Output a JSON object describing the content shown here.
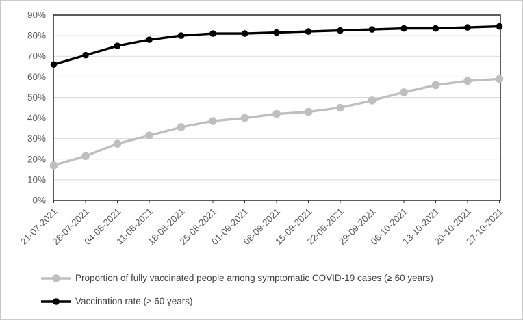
{
  "page": {
    "background": "#ffffff",
    "border_color": "#c9c9c9"
  },
  "chart_data": {
    "type": "line",
    "categories": [
      "21-07-2021",
      "28-07-2021",
      "04-08-2021",
      "11-08-2021",
      "18-08-2021",
      "25-08-2021",
      "01-09-2021",
      "08-09-2021",
      "15-09-2021",
      "22-09-2021",
      "29-09-2021",
      "06-10-2021",
      "13-10-2021",
      "20-10-2021",
      "27-10-2021"
    ],
    "series": [
      {
        "name": "Proportion of fully vaccinated people among symptomatic COVID-19 cases (≥ 60 years)",
        "color": "#bfbfbf",
        "marker": "circle",
        "marker_radius": 5.8,
        "line_width": 3.4,
        "values": [
          17,
          21.5,
          27.5,
          31.5,
          35.5,
          38.5,
          40,
          42,
          43,
          45,
          48.5,
          52.5,
          56,
          58,
          59
        ]
      },
      {
        "name": "Vaccination rate (≥ 60 years)",
        "color": "#000000",
        "marker": "circle",
        "marker_radius": 4.8,
        "line_width": 3.4,
        "values": [
          66,
          70.5,
          75,
          78,
          80,
          81,
          81,
          81.5,
          82,
          82.5,
          83,
          83.5,
          83.5,
          84,
          84.5
        ]
      }
    ],
    "xlabel": "",
    "ylabel": "",
    "ylim": [
      0,
      90
    ],
    "yticks": [
      0,
      10,
      20,
      30,
      40,
      50,
      60,
      70,
      80,
      90
    ],
    "ytick_labels": [
      "0%",
      "10%",
      "20%",
      "30%",
      "40%",
      "50%",
      "60%",
      "70%",
      "80%",
      "90%"
    ],
    "x_label_rotation": -45,
    "grid": "horizontal",
    "gridline_color": "#d9d9d9",
    "plot_border_color": "#333333",
    "axis_text_color": "#595959",
    "tick_color": "#595959",
    "legend_position": "bottom-left",
    "legend_text_color": "#404040"
  }
}
